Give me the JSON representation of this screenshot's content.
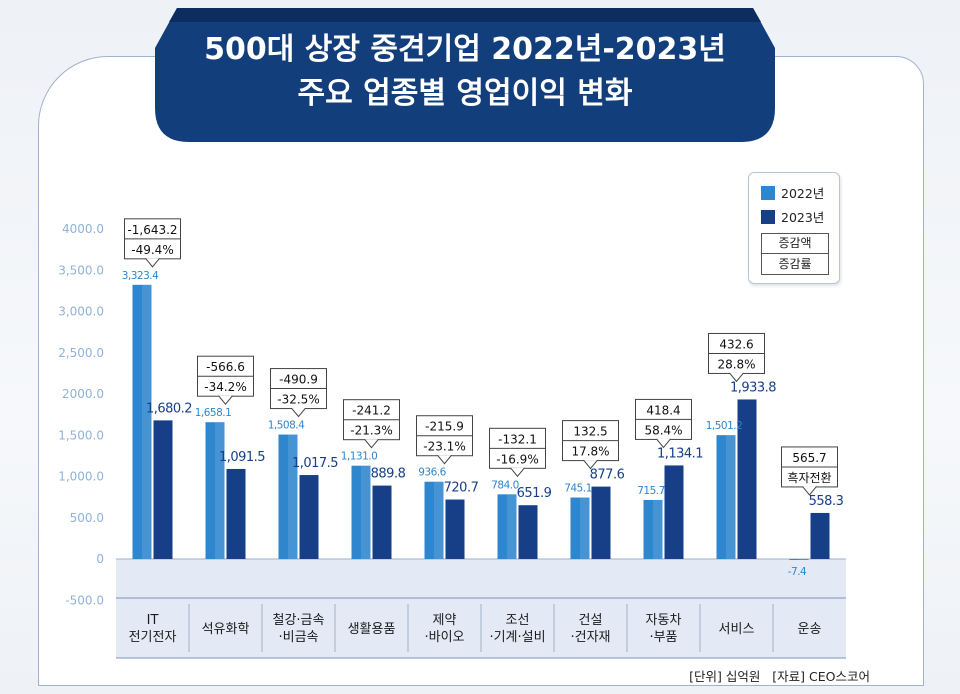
{
  "title": {
    "line1": "500대 상장 중견기업 2022년-2023년",
    "line2": "주요 업종별 영업이익 변화"
  },
  "legend": {
    "series_2022": "2022년",
    "series_2023": "2023년",
    "change_amount": "증감액",
    "change_rate": "증감률"
  },
  "footer": {
    "unit": "[단위] 십억원",
    "source": "[자료] CEO스코어"
  },
  "colors": {
    "series_2022": "#2e86cf",
    "series_2023": "#163f88",
    "title_ribbon": "#123e7c",
    "axis_text": "#8fb3d9",
    "category_band": "#e4eaf5"
  },
  "chart_data": {
    "type": "bar",
    "ylim": [
      -500,
      4000
    ],
    "yticks": [
      {
        "value": 4000,
        "label": "4000.0"
      },
      {
        "value": 3500,
        "label": "3,500.0"
      },
      {
        "value": 3000,
        "label": "3,000.0"
      },
      {
        "value": 2500,
        "label": "2,500.0"
      },
      {
        "value": 2000,
        "label": "2000.0"
      },
      {
        "value": 1500,
        "label": "1,500.0"
      },
      {
        "value": 1000,
        "label": "1,000.0"
      },
      {
        "value": 500,
        "label": "500.0"
      },
      {
        "value": 0,
        "label": "0"
      },
      {
        "value": -500,
        "label": "-500.0"
      }
    ],
    "categories": [
      [
        "IT",
        "전기전자"
      ],
      [
        "석유화학"
      ],
      [
        "철강·금속",
        "·비금속"
      ],
      [
        "생활용품"
      ],
      [
        "제약",
        "·바이오"
      ],
      [
        "조선",
        "·기계·설비"
      ],
      [
        "건설",
        "·건자재"
      ],
      [
        "자동차",
        "·부품"
      ],
      [
        "서비스"
      ],
      [
        "운송"
      ]
    ],
    "series": [
      {
        "name": "2022년",
        "values": [
          3323.4,
          1658.1,
          1508.4,
          1131.0,
          936.6,
          784.0,
          745.1,
          715.7,
          1501.2,
          -7.4
        ],
        "labels": [
          "3,323.4",
          "1,658.1",
          "1,508.4",
          "1,131.0",
          "936.6",
          "784.0",
          "745.1",
          "715.7",
          "1,501.2",
          "-7.4"
        ]
      },
      {
        "name": "2023년",
        "values": [
          1680.2,
          1091.5,
          1017.5,
          889.8,
          720.7,
          651.9,
          877.6,
          1134.1,
          1933.8,
          558.3
        ],
        "labels": [
          "1,680.2",
          "1,091.5",
          "1,017.5",
          "889.8",
          "720.7",
          "651.9",
          "877.6",
          "1,134.1",
          "1,933.8",
          "558.3"
        ]
      }
    ],
    "changes": [
      {
        "amount": "-1,643.2",
        "rate": "-49.4%"
      },
      {
        "amount": "-566.6",
        "rate": "-34.2%"
      },
      {
        "amount": "-490.9",
        "rate": "-32.5%"
      },
      {
        "amount": "-241.2",
        "rate": "-21.3%"
      },
      {
        "amount": "-215.9",
        "rate": "-23.1%"
      },
      {
        "amount": "-132.1",
        "rate": "-16.9%"
      },
      {
        "amount": "132.5",
        "rate": "17.8%"
      },
      {
        "amount": "418.4",
        "rate": "58.4%"
      },
      {
        "amount": "432.6",
        "rate": "28.8%"
      },
      {
        "amount": "565.7",
        "rate": "흑자전환"
      }
    ],
    "grid": false,
    "legend_position": "top-right"
  }
}
